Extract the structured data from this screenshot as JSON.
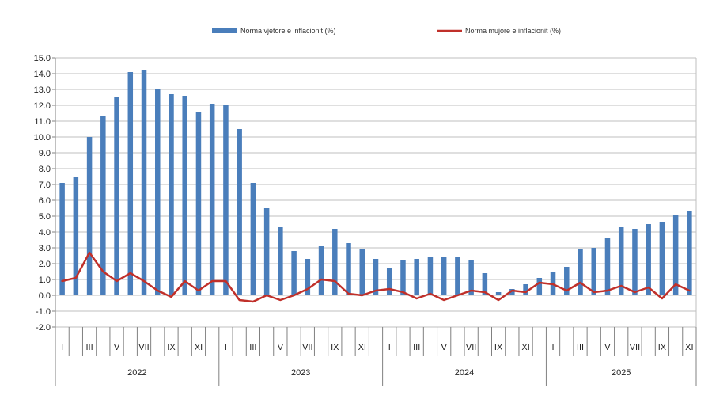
{
  "chart_data": {
    "type": "bar+line",
    "title": "",
    "legend": {
      "position": "top",
      "entries": [
        {
          "name": "Norma vjetore e inflacionit (%)",
          "kind": "bar"
        },
        {
          "name": "Norma mujore e inflacionit (%)",
          "kind": "line"
        }
      ]
    },
    "ylim": [
      -2.0,
      15.0
    ],
    "yticks": [
      "15.0",
      "14.0",
      "13.0",
      "12.0",
      "11.0",
      "10.0",
      "9.0",
      "8.0",
      "7.0",
      "6.0",
      "5.0",
      "4.0",
      "3.0",
      "2.0",
      "1.0",
      "0.0",
      "-1.0",
      "-2.0"
    ],
    "month_labels": [
      "I",
      "",
      "III",
      "",
      "V",
      "",
      "VII",
      "",
      "IX",
      "",
      "XI",
      "",
      "I",
      "",
      "III",
      "",
      "V",
      "",
      "VII",
      "",
      "IX",
      "",
      "XI",
      "",
      "I",
      "",
      "III",
      "",
      "V",
      "",
      "VII",
      "",
      "IX",
      "",
      "XI",
      "",
      "I",
      "",
      "III",
      "",
      "V",
      "",
      "VII",
      "",
      "IX",
      "",
      "XI"
    ],
    "years": [
      "2022",
      "2023",
      "2024",
      "2025"
    ],
    "series": [
      {
        "name": "Norma vjetore e inflacionit (%)",
        "type": "bar",
        "color": "#4a7ebb",
        "values": [
          7.1,
          7.5,
          10.0,
          11.3,
          12.5,
          14.1,
          14.2,
          13.0,
          12.7,
          12.6,
          11.6,
          12.1,
          12.0,
          10.5,
          7.1,
          5.5,
          4.3,
          2.8,
          2.3,
          3.1,
          4.2,
          3.3,
          2.9,
          2.3,
          1.7,
          2.2,
          2.3,
          2.4,
          2.4,
          2.4,
          2.2,
          1.4,
          0.2,
          0.4,
          0.7,
          1.1,
          1.5,
          1.8,
          2.9,
          3.0,
          3.6,
          4.3,
          4.2,
          4.5,
          4.6,
          5.1,
          5.3
        ]
      },
      {
        "name": "Norma mujore e inflacionit (%)",
        "type": "line",
        "color": "#c0302a",
        "values": [
          0.9,
          1.1,
          2.7,
          1.5,
          0.9,
          1.4,
          0.9,
          0.3,
          -0.1,
          0.9,
          0.3,
          0.9,
          0.9,
          -0.3,
          -0.4,
          0.0,
          -0.3,
          0.0,
          0.4,
          1.0,
          0.9,
          0.1,
          0.0,
          0.3,
          0.4,
          0.2,
          -0.2,
          0.1,
          -0.3,
          0.0,
          0.3,
          0.2,
          -0.3,
          0.3,
          0.2,
          0.8,
          0.7,
          0.3,
          0.8,
          0.2,
          0.3,
          0.6,
          0.2,
          0.5,
          -0.2,
          0.7,
          0.3
        ]
      }
    ]
  }
}
